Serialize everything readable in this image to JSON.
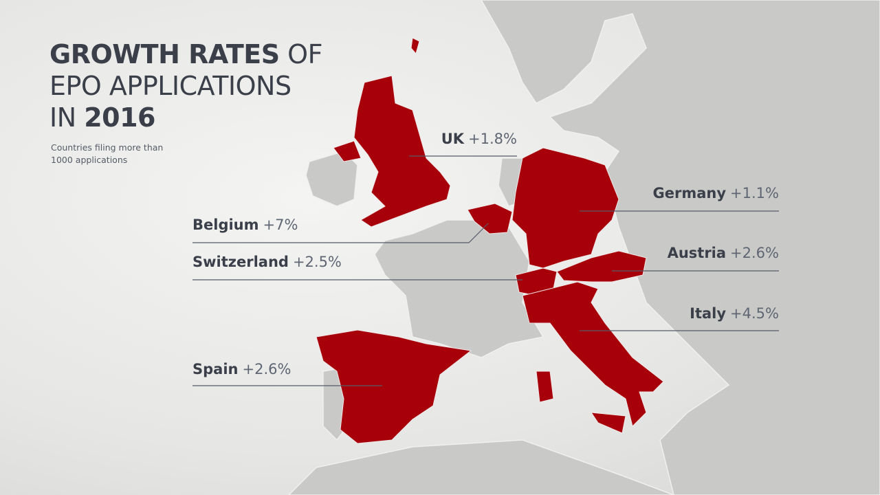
{
  "title": [
    [
      "GROWTH RATES",
      " OF"
    ],
    [
      "EPO APPLICATIONS"
    ],
    [
      "IN ",
      "2016"
    ]
  ],
  "subtitle": [
    "Countries filing more than",
    "1000 applications"
  ],
  "labels": [
    {
      "name": "UK",
      "change": "+1.8%"
    },
    {
      "name": "Germany",
      "change": "+1.1%"
    },
    {
      "name": "Belgium",
      "change": "+7%"
    },
    {
      "name": "Switzerland",
      "change": "+2.5%"
    },
    {
      "name": "Austria",
      "change": "+2.6%"
    },
    {
      "name": "Italy",
      "change": "+4.5%"
    },
    {
      "name": "Spain",
      "change": "+2.6%"
    }
  ]
}
